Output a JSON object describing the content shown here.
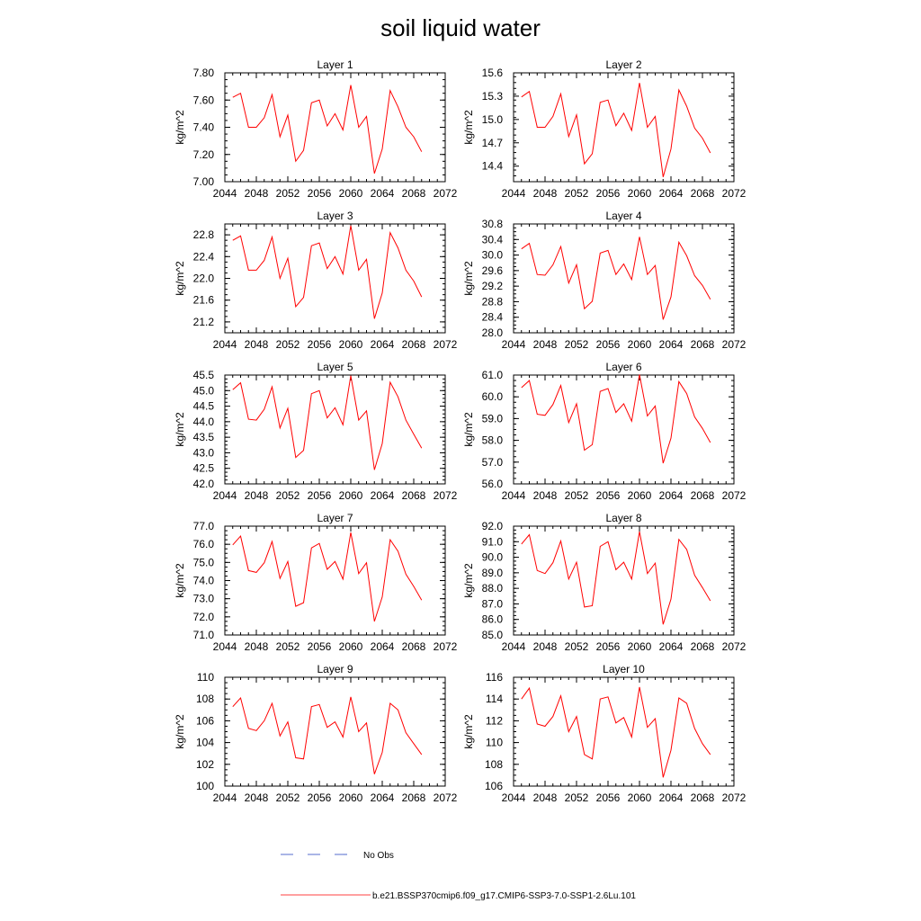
{
  "title": "soil liquid water",
  "colors": {
    "model_line": "#ff0000",
    "obs_line": "#1f3fbf",
    "axis": "#000000"
  },
  "legend": {
    "obs_label": "No Obs",
    "model_label": "b.e21.BSSP370cmip6.f09_g17.CMIP6-SSP3-7.0-SSP1-2.6Lu.101"
  },
  "chart_data": [
    {
      "type": "line",
      "title": "Layer 1",
      "ylabel": "kg/m^2",
      "xlim": [
        2044,
        2072
      ],
      "xticks": [
        2044,
        2048,
        2052,
        2056,
        2060,
        2064,
        2068,
        2072
      ],
      "ylim": [
        7.0,
        7.8
      ],
      "yticks": [
        "7.00",
        "7.20",
        "7.40",
        "7.60",
        "7.80"
      ],
      "series": [
        {
          "name": "b.e21.BSSP370cmip6.f09_g17.CMIP6-SSP3-7.0-SSP1-2.6Lu.101",
          "x": [
            2045,
            2046,
            2047,
            2048,
            2049,
            2050,
            2051,
            2052,
            2053,
            2054,
            2055,
            2056,
            2057,
            2058,
            2059,
            2060,
            2061,
            2062,
            2063,
            2064,
            2065,
            2066,
            2067,
            2068,
            2069
          ],
          "y": [
            7.62,
            7.65,
            7.4,
            7.4,
            7.47,
            7.64,
            7.33,
            7.49,
            7.15,
            7.23,
            7.58,
            7.6,
            7.41,
            7.5,
            7.38,
            7.71,
            7.4,
            7.48,
            7.06,
            7.24,
            7.67,
            7.55,
            7.4,
            7.33,
            7.22
          ]
        }
      ]
    },
    {
      "type": "line",
      "title": "Layer 2",
      "ylabel": "kg/m^2",
      "xlim": [
        2044,
        2072
      ],
      "xticks": [
        2044,
        2048,
        2052,
        2056,
        2060,
        2064,
        2068,
        2072
      ],
      "ylim": [
        14.2,
        15.6
      ],
      "yticks": [
        "14.4",
        "14.7",
        "15.0",
        "15.3",
        "15.6"
      ],
      "series": [
        {
          "name": "b.e21.BSSP370cmip6.f09_g17.CMIP6-SSP3-7.0-SSP1-2.6Lu.101",
          "x": [
            2045,
            2046,
            2047,
            2048,
            2049,
            2050,
            2051,
            2052,
            2053,
            2054,
            2055,
            2056,
            2057,
            2058,
            2059,
            2060,
            2061,
            2062,
            2063,
            2064,
            2065,
            2066,
            2067,
            2068,
            2069
          ],
          "y": [
            15.29,
            15.36,
            14.9,
            14.9,
            15.04,
            15.33,
            14.78,
            15.06,
            14.43,
            14.56,
            15.22,
            15.25,
            14.92,
            15.08,
            14.86,
            15.47,
            14.9,
            15.04,
            14.26,
            14.62,
            15.38,
            15.17,
            14.89,
            14.76,
            14.57
          ]
        }
      ]
    },
    {
      "type": "line",
      "title": "Layer 3",
      "ylabel": "kg/m^2",
      "xlim": [
        2044,
        2072
      ],
      "xticks": [
        2044,
        2048,
        2052,
        2056,
        2060,
        2064,
        2068,
        2072
      ],
      "ylim": [
        21.0,
        23.0
      ],
      "yticks": [
        "21.2",
        "21.6",
        "22.0",
        "22.4",
        "22.8"
      ],
      "series": [
        {
          "name": "b.e21.BSSP370cmip6.f09_g17.CMIP6-SSP3-7.0-SSP1-2.6Lu.101",
          "x": [
            2045,
            2046,
            2047,
            2048,
            2049,
            2050,
            2051,
            2052,
            2053,
            2054,
            2055,
            2056,
            2057,
            2058,
            2059,
            2060,
            2061,
            2062,
            2063,
            2064,
            2065,
            2066,
            2067,
            2068,
            2069
          ],
          "y": [
            22.7,
            22.78,
            22.15,
            22.15,
            22.33,
            22.76,
            22.0,
            22.37,
            21.48,
            21.65,
            22.6,
            22.65,
            22.18,
            22.4,
            22.08,
            22.97,
            22.15,
            22.35,
            21.26,
            21.73,
            22.84,
            22.56,
            22.15,
            21.95,
            21.66
          ]
        }
      ]
    },
    {
      "type": "line",
      "title": "Layer 4",
      "ylabel": "kg/m^2",
      "xlim": [
        2044,
        2072
      ],
      "xticks": [
        2044,
        2048,
        2052,
        2056,
        2060,
        2064,
        2068,
        2072
      ],
      "ylim": [
        28.0,
        30.8
      ],
      "yticks": [
        "28.0",
        "28.4",
        "28.8",
        "29.2",
        "29.6",
        "30.0",
        "30.4",
        "30.8"
      ],
      "series": [
        {
          "name": "b.e21.BSSP370cmip6.f09_g17.CMIP6-SSP3-7.0-SSP1-2.6Lu.101",
          "x": [
            2045,
            2046,
            2047,
            2048,
            2049,
            2050,
            2051,
            2052,
            2053,
            2054,
            2055,
            2056,
            2057,
            2058,
            2059,
            2060,
            2061,
            2062,
            2063,
            2064,
            2065,
            2066,
            2067,
            2068,
            2069
          ],
          "y": [
            30.16,
            30.3,
            29.5,
            29.48,
            29.75,
            30.22,
            29.28,
            29.75,
            28.62,
            28.81,
            30.05,
            30.12,
            29.5,
            29.77,
            29.37,
            30.47,
            29.5,
            29.73,
            28.34,
            28.92,
            30.33,
            29.98,
            29.47,
            29.22,
            28.86
          ]
        }
      ]
    },
    {
      "type": "line",
      "title": "Layer 5",
      "ylabel": "kg/m^2",
      "xlim": [
        2044,
        2072
      ],
      "xticks": [
        2044,
        2048,
        2052,
        2056,
        2060,
        2064,
        2068,
        2072
      ],
      "ylim": [
        42.0,
        45.5
      ],
      "yticks": [
        "42.0",
        "42.5",
        "43.0",
        "43.5",
        "44.0",
        "44.5",
        "45.0",
        "45.5"
      ],
      "series": [
        {
          "name": "b.e21.BSSP370cmip6.f09_g17.CMIP6-SSP3-7.0-SSP1-2.6Lu.101",
          "x": [
            2045,
            2046,
            2047,
            2048,
            2049,
            2050,
            2051,
            2052,
            2053,
            2054,
            2055,
            2056,
            2057,
            2058,
            2059,
            2060,
            2061,
            2062,
            2063,
            2064,
            2065,
            2066,
            2067,
            2068,
            2069
          ],
          "y": [
            45.03,
            45.25,
            44.08,
            44.05,
            44.4,
            45.12,
            43.8,
            44.43,
            42.85,
            43.08,
            44.9,
            45.0,
            44.12,
            44.45,
            43.9,
            45.48,
            44.05,
            44.35,
            42.45,
            43.3,
            45.27,
            44.8,
            44.05,
            43.6,
            43.15
          ]
        }
      ]
    },
    {
      "type": "line",
      "title": "Layer 6",
      "ylabel": "kg/m^2",
      "xlim": [
        2044,
        2072
      ],
      "xticks": [
        2044,
        2048,
        2052,
        2056,
        2060,
        2064,
        2068,
        2072
      ],
      "ylim": [
        56.0,
        61.0
      ],
      "yticks": [
        "56.0",
        "57.0",
        "58.0",
        "59.0",
        "60.0",
        "61.0"
      ],
      "series": [
        {
          "name": "b.e21.BSSP370cmip6.f09_g17.CMIP6-SSP3-7.0-SSP1-2.6Lu.101",
          "x": [
            2045,
            2046,
            2047,
            2048,
            2049,
            2050,
            2051,
            2052,
            2053,
            2054,
            2055,
            2056,
            2057,
            2058,
            2059,
            2060,
            2061,
            2062,
            2063,
            2064,
            2065,
            2066,
            2067,
            2068,
            2069
          ],
          "y": [
            60.42,
            60.75,
            59.2,
            59.15,
            59.65,
            60.52,
            58.82,
            59.68,
            57.55,
            57.8,
            60.25,
            60.38,
            59.28,
            59.68,
            58.88,
            61.02,
            59.12,
            59.58,
            56.95,
            58.1,
            60.7,
            60.15,
            59.08,
            58.55,
            57.9
          ]
        }
      ]
    },
    {
      "type": "line",
      "title": "Layer 7",
      "ylabel": "kg/m^2",
      "xlim": [
        2044,
        2072
      ],
      "xticks": [
        2044,
        2048,
        2052,
        2056,
        2060,
        2064,
        2068,
        2072
      ],
      "ylim": [
        71.0,
        77.0
      ],
      "yticks": [
        "71.0",
        "72.0",
        "73.0",
        "74.0",
        "75.0",
        "76.0",
        "77.0"
      ],
      "series": [
        {
          "name": "b.e21.BSSP370cmip6.f09_g17.CMIP6-SSP3-7.0-SSP1-2.6Lu.101",
          "x": [
            2045,
            2046,
            2047,
            2048,
            2049,
            2050,
            2051,
            2052,
            2053,
            2054,
            2055,
            2056,
            2057,
            2058,
            2059,
            2060,
            2061,
            2062,
            2063,
            2064,
            2065,
            2066,
            2067,
            2068,
            2069
          ],
          "y": [
            75.97,
            76.45,
            74.55,
            74.45,
            74.98,
            76.15,
            74.12,
            75.05,
            72.58,
            72.78,
            75.8,
            76.05,
            74.62,
            75.05,
            74.08,
            76.65,
            74.38,
            74.98,
            71.75,
            73.1,
            76.25,
            75.62,
            74.35,
            73.68,
            72.92
          ]
        }
      ]
    },
    {
      "type": "line",
      "title": "Layer 8",
      "ylabel": "kg/m^2",
      "xlim": [
        2044,
        2072
      ],
      "xticks": [
        2044,
        2048,
        2052,
        2056,
        2060,
        2064,
        2068,
        2072
      ],
      "ylim": [
        85.0,
        92.0
      ],
      "yticks": [
        "85.0",
        "86.0",
        "87.0",
        "88.0",
        "89.0",
        "90.0",
        "91.0",
        "92.0"
      ],
      "series": [
        {
          "name": "b.e21.BSSP370cmip6.f09_g17.CMIP6-SSP3-7.0-SSP1-2.6Lu.101",
          "x": [
            2045,
            2046,
            2047,
            2048,
            2049,
            2050,
            2051,
            2052,
            2053,
            2054,
            2055,
            2056,
            2057,
            2058,
            2059,
            2060,
            2061,
            2062,
            2063,
            2064,
            2065,
            2066,
            2067,
            2068,
            2069
          ],
          "y": [
            90.85,
            91.45,
            89.15,
            88.95,
            89.65,
            91.05,
            88.6,
            89.68,
            86.8,
            86.88,
            90.7,
            91.0,
            89.2,
            89.68,
            88.6,
            91.65,
            88.95,
            89.62,
            85.68,
            87.3,
            91.15,
            90.5,
            88.85,
            88.05,
            87.2
          ]
        }
      ]
    },
    {
      "type": "line",
      "title": "Layer 9",
      "ylabel": "kg/m^2",
      "xlim": [
        2044,
        2072
      ],
      "xticks": [
        2044,
        2048,
        2052,
        2056,
        2060,
        2064,
        2068,
        2072
      ],
      "ylim": [
        100,
        110
      ],
      "yticks": [
        "100",
        "102",
        "104",
        "106",
        "108",
        "110"
      ],
      "series": [
        {
          "name": "b.e21.BSSP370cmip6.f09_g17.CMIP6-SSP3-7.0-SSP1-2.6Lu.101",
          "x": [
            2045,
            2046,
            2047,
            2048,
            2049,
            2050,
            2051,
            2052,
            2053,
            2054,
            2055,
            2056,
            2057,
            2058,
            2059,
            2060,
            2061,
            2062,
            2063,
            2064,
            2065,
            2066,
            2067,
            2068,
            2069
          ],
          "y": [
            107.3,
            108.1,
            105.3,
            105.1,
            106.0,
            107.6,
            104.6,
            105.9,
            102.6,
            102.5,
            107.3,
            107.5,
            105.4,
            105.9,
            104.5,
            108.2,
            105.0,
            105.8,
            101.1,
            103.1,
            107.6,
            107.0,
            104.9,
            103.9,
            102.9
          ]
        }
      ]
    },
    {
      "type": "line",
      "title": "Layer 10",
      "ylabel": "kg/m^2",
      "xlim": [
        2044,
        2072
      ],
      "xticks": [
        2044,
        2048,
        2052,
        2056,
        2060,
        2064,
        2068,
        2072
      ],
      "ylim": [
        106,
        116
      ],
      "yticks": [
        "106",
        "108",
        "110",
        "112",
        "114",
        "116"
      ],
      "series": [
        {
          "name": "b.e21.BSSP370cmip6.f09_g17.CMIP6-SSP3-7.0-SSP1-2.6Lu.101",
          "x": [
            2045,
            2046,
            2047,
            2048,
            2049,
            2050,
            2051,
            2052,
            2053,
            2054,
            2055,
            2056,
            2057,
            2058,
            2059,
            2060,
            2061,
            2062,
            2063,
            2064,
            2065,
            2066,
            2067,
            2068,
            2069
          ],
          "y": [
            114.0,
            115.0,
            111.7,
            111.5,
            112.4,
            114.3,
            111.0,
            112.4,
            108.9,
            108.5,
            114.0,
            114.2,
            111.8,
            112.3,
            110.5,
            115.1,
            111.4,
            112.2,
            106.8,
            109.3,
            114.1,
            113.6,
            111.3,
            109.9,
            108.9
          ]
        }
      ]
    }
  ]
}
